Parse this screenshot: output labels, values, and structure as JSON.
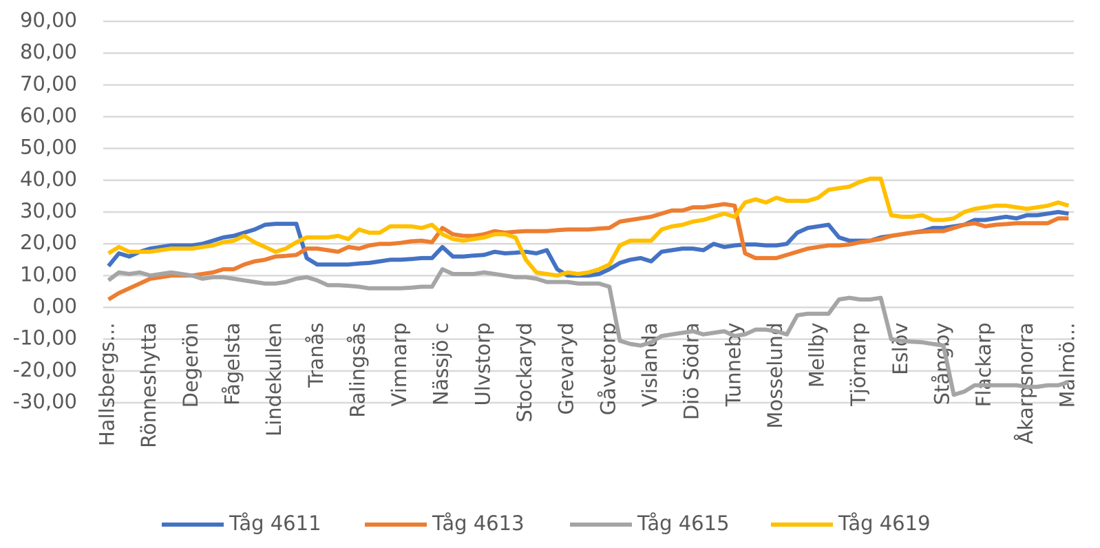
{
  "chart_data": {
    "type": "line",
    "categories": [
      "Hallsbergs...",
      null,
      null,
      null,
      "Rönneshytta",
      null,
      null,
      null,
      "Degerön",
      null,
      null,
      null,
      "Fågelsta",
      null,
      null,
      null,
      "Lindekullen",
      null,
      null,
      null,
      "Tranås",
      null,
      null,
      null,
      "Ralingsås",
      null,
      null,
      null,
      "Vimnarp",
      null,
      null,
      null,
      "Nässjö c",
      null,
      null,
      null,
      "Ulvstorp",
      null,
      null,
      null,
      "Stockaryd",
      null,
      null,
      null,
      "Grevaryd",
      null,
      null,
      null,
      "Gåvetorp",
      null,
      null,
      null,
      "Vislanda",
      null,
      null,
      null,
      "Diö Södra",
      null,
      null,
      null,
      "Tunneby",
      null,
      null,
      null,
      "Mosselund",
      null,
      null,
      null,
      "Mellby",
      null,
      null,
      null,
      "Tjörnarp",
      null,
      null,
      null,
      "Eslöv",
      null,
      null,
      null,
      "Stångby",
      null,
      null,
      null,
      "Flackarp",
      null,
      null,
      null,
      "Åkarpsnorra",
      null,
      null,
      null,
      "Malmö..."
    ],
    "series": [
      {
        "name": "Tåg 4611",
        "color": "#4472c4",
        "values": [
          13,
          17,
          16,
          17.5,
          18.5,
          19,
          19.5,
          19.5,
          19.5,
          20,
          21,
          22,
          22.5,
          23.5,
          24.5,
          26,
          26.3,
          26.3,
          26.3,
          15.5,
          13.5,
          13.5,
          13.5,
          13.5,
          13.8,
          14,
          14.5,
          15,
          15,
          15.2,
          15.5,
          15.5,
          19,
          16,
          16,
          16.3,
          16.5,
          17.5,
          17,
          17.2,
          17.5,
          17,
          18,
          12,
          10,
          10,
          10,
          10.5,
          12,
          14,
          15,
          15.5,
          14.5,
          17.5,
          18,
          18.5,
          18.5,
          18,
          20,
          19,
          19.5,
          19.8,
          19.8,
          19.5,
          19.5,
          20,
          23.5,
          25,
          25.5,
          26,
          22,
          21,
          21,
          21,
          22,
          22.5,
          23,
          23.5,
          24,
          25,
          25,
          25.5,
          26,
          27.5,
          27.5,
          28,
          28.5,
          28,
          29,
          29,
          29.5,
          30,
          29.5
        ]
      },
      {
        "name": "Tåg 4613",
        "color": "#ed7d31",
        "values": [
          2.5,
          4.5,
          6,
          7.5,
          9,
          9.5,
          10,
          10,
          10,
          10.5,
          11,
          12,
          12,
          13.5,
          14.5,
          15,
          16,
          16.2,
          16.5,
          18.5,
          18.5,
          18,
          17.5,
          19,
          18.5,
          19.5,
          20,
          20,
          20.3,
          20.8,
          21,
          20.5,
          25,
          23,
          22.5,
          22.5,
          23,
          24,
          23.5,
          23.8,
          24,
          24,
          24,
          24.3,
          24.5,
          24.5,
          24.5,
          24.8,
          25,
          27,
          27.5,
          28,
          28.5,
          29.5,
          30.5,
          30.5,
          31.5,
          31.5,
          32,
          32.5,
          32,
          17,
          15.5,
          15.5,
          15.5,
          16.5,
          17.5,
          18.5,
          19,
          19.5,
          19.5,
          19.8,
          20.5,
          21,
          21.5,
          22.5,
          23,
          23.5,
          23.8,
          24,
          24,
          25,
          26,
          26.5,
          25.5,
          26,
          26.2,
          26.5,
          26.5,
          26.5,
          26.5,
          28,
          28
        ]
      },
      {
        "name": "Tåg 4615",
        "color": "#a5a5a5",
        "values": [
          8.5,
          11,
          10.5,
          11,
          10,
          10.5,
          11,
          10.5,
          10,
          9,
          9.5,
          9.5,
          9,
          8.5,
          8,
          7.5,
          7.5,
          8,
          9,
          9.5,
          8.5,
          7,
          7,
          6.8,
          6.5,
          6,
          6,
          6,
          6,
          6.2,
          6.5,
          6.5,
          12,
          10.5,
          10.5,
          10.5,
          11,
          10.5,
          10,
          9.5,
          9.5,
          9,
          8,
          8,
          8,
          7.5,
          7.5,
          7.5,
          6.5,
          -10.5,
          -11.5,
          -12,
          -11,
          -9,
          -8.5,
          -8,
          -7.5,
          -8.5,
          -8,
          -7.5,
          -9,
          -8.5,
          -7,
          -7,
          -7.5,
          -8.5,
          -2.5,
          -2,
          -2,
          -2,
          2.5,
          3,
          2.5,
          2.5,
          3,
          -10,
          -10.5,
          -10.8,
          -11,
          -11.5,
          -12,
          -27.5,
          -26.5,
          -24.5,
          -24.5,
          -24.5,
          -24.5,
          -24.5,
          -25,
          -25,
          -24.5,
          -24.5,
          -23.5
        ]
      },
      {
        "name": "Tåg 4619",
        "color": "#ffc000",
        "values": [
          17,
          19,
          17.5,
          17.5,
          17.5,
          18,
          18.5,
          18.5,
          18.5,
          19,
          19.5,
          20.5,
          21,
          22.5,
          20.5,
          19,
          17.5,
          18.5,
          20.5,
          22,
          22,
          22,
          22.5,
          21.5,
          24.5,
          23.5,
          23.5,
          25.5,
          25.5,
          25.5,
          25,
          26,
          23,
          21.5,
          21,
          21.5,
          22,
          23,
          23,
          22,
          15,
          11,
          10.5,
          10,
          11,
          10.5,
          11,
          12,
          13.5,
          19.5,
          21,
          21,
          21,
          24.5,
          25.5,
          26,
          27,
          27.5,
          28.5,
          29.5,
          28.5,
          33,
          34,
          33,
          34.5,
          33.5,
          33.5,
          33.5,
          34.5,
          37,
          37.5,
          38,
          39.5,
          40.5,
          40.5,
          29,
          28.5,
          28.5,
          29,
          27.5,
          27.5,
          28,
          30,
          31,
          31.5,
          32,
          32,
          31.5,
          31,
          31.5,
          32,
          33,
          32
        ]
      }
    ],
    "ylim": [
      -30,
      90
    ],
    "yticks": [
      {
        "value": -30,
        "label": "-30,00"
      },
      {
        "value": -20,
        "label": "-20,00"
      },
      {
        "value": -10,
        "label": "-10,00"
      },
      {
        "value": 0,
        "label": "0,00"
      },
      {
        "value": 10,
        "label": "10,00"
      },
      {
        "value": 20,
        "label": "20,00"
      },
      {
        "value": 30,
        "label": "30,00"
      },
      {
        "value": 40,
        "label": "40,00"
      },
      {
        "value": 50,
        "label": "50,00"
      },
      {
        "value": 60,
        "label": "60,00"
      },
      {
        "value": 70,
        "label": "70,00"
      },
      {
        "value": 80,
        "label": "80,00"
      },
      {
        "value": 90,
        "label": "90,00"
      }
    ],
    "grid": true,
    "legend": "bottom"
  }
}
